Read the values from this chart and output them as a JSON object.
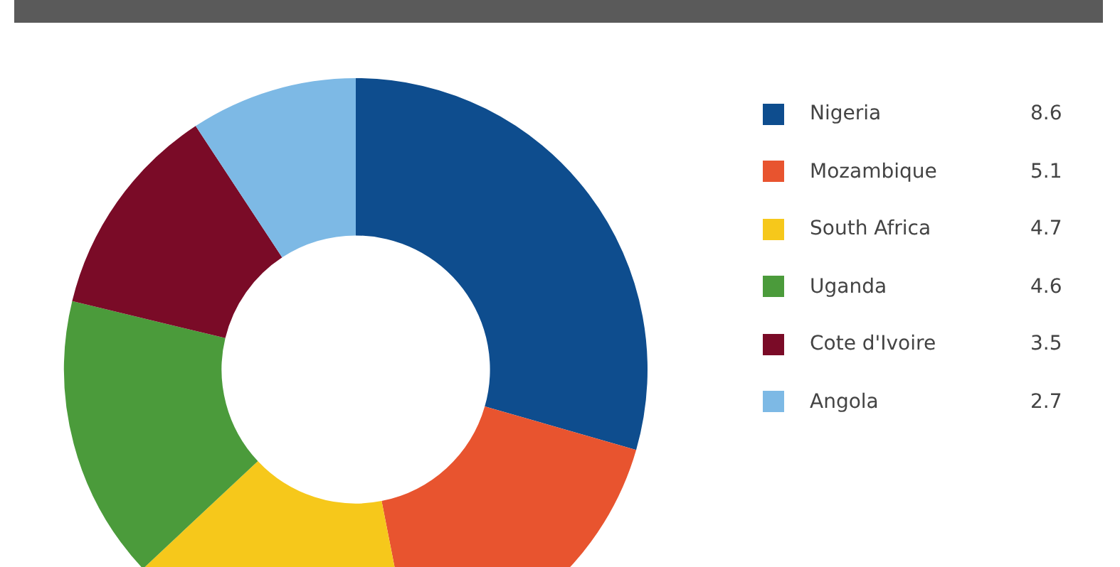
{
  "chart_data": {
    "type": "donut",
    "categories": [
      "Nigeria",
      "Mozambique",
      "South Africa",
      "Uganda",
      "Cote d'Ivoire",
      "Angola"
    ],
    "values": [
      8.6,
      5.1,
      4.7,
      4.6,
      3.5,
      2.7
    ],
    "colors": [
      "#0e4d8e",
      "#e8542f",
      "#f6c81b",
      "#4b9b3b",
      "#7a0b27",
      "#7db9e5"
    ],
    "legend": "right",
    "data_labels": true
  }
}
